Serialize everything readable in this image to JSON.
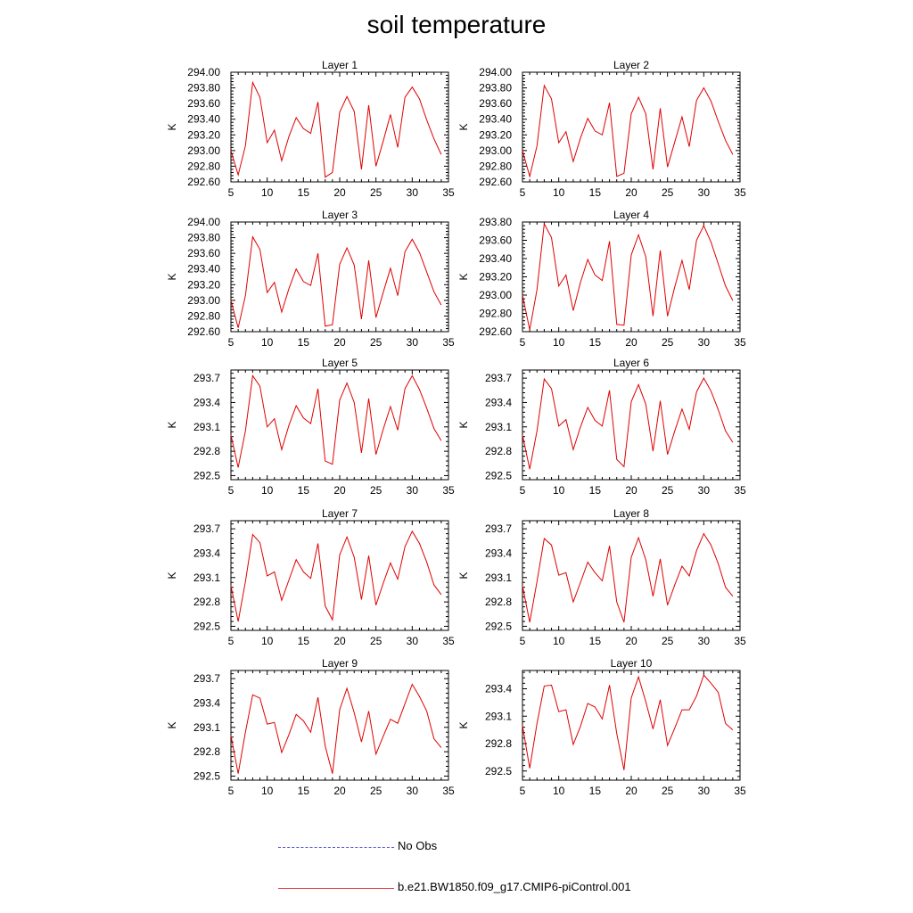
{
  "title": "soil temperature",
  "legend": [
    {
      "label": "No Obs",
      "color": "#5a5ad8",
      "style": "dashed"
    },
    {
      "label": "b.e21.BW1850.f09_g17.CMIP6-piControl.001",
      "color": "#e00000",
      "style": "solid"
    }
  ],
  "chart_data": [
    {
      "type": "line",
      "title": "Layer 1",
      "ylabel": "K",
      "xlim": [
        5,
        35
      ],
      "ylim": [
        292.6,
        294.0
      ],
      "xticks": [
        5,
        10,
        15,
        20,
        25,
        30,
        35
      ],
      "yticks": [
        292.6,
        292.8,
        293.0,
        293.2,
        293.4,
        293.6,
        293.8,
        294.0
      ],
      "ytick_decimals": 2,
      "x": [
        5,
        6,
        7,
        8,
        9,
        10,
        11,
        12,
        13,
        14,
        15,
        16,
        17,
        18,
        19,
        20,
        21,
        22,
        23,
        24,
        25,
        26,
        27,
        28,
        29,
        30,
        31,
        32,
        33,
        34
      ],
      "series": [
        {
          "values": [
            293.0,
            292.69,
            293.06,
            293.87,
            293.68,
            293.1,
            293.26,
            292.87,
            293.18,
            293.42,
            293.28,
            293.22,
            293.62,
            292.66,
            292.72,
            293.49,
            293.69,
            293.5,
            292.76,
            293.58,
            292.8,
            293.12,
            293.46,
            293.04,
            293.68,
            293.81,
            293.66,
            293.39,
            293.15,
            292.95
          ]
        }
      ]
    },
    {
      "type": "line",
      "title": "Layer 2",
      "ylabel": "K",
      "xlim": [
        5,
        35
      ],
      "ylim": [
        292.6,
        294.0
      ],
      "xticks": [
        5,
        10,
        15,
        20,
        25,
        30,
        35
      ],
      "yticks": [
        292.6,
        292.8,
        293.0,
        293.2,
        293.4,
        293.6,
        293.8,
        294.0
      ],
      "ytick_decimals": 2,
      "x": [
        5,
        6,
        7,
        8,
        9,
        10,
        11,
        12,
        13,
        14,
        15,
        16,
        17,
        18,
        19,
        20,
        21,
        22,
        23,
        24,
        25,
        26,
        27,
        28,
        29,
        30,
        31,
        32,
        33,
        34
      ],
      "series": [
        {
          "values": [
            293.0,
            292.67,
            293.06,
            293.83,
            293.66,
            293.1,
            293.24,
            292.86,
            293.16,
            293.41,
            293.25,
            293.2,
            293.61,
            292.67,
            292.71,
            293.47,
            293.68,
            293.47,
            292.76,
            293.54,
            292.79,
            293.11,
            293.43,
            293.05,
            293.64,
            293.8,
            293.63,
            293.37,
            293.13,
            292.95
          ]
        }
      ]
    },
    {
      "type": "line",
      "title": "Layer 3",
      "ylabel": "K",
      "xlim": [
        5,
        35
      ],
      "ylim": [
        292.6,
        294.0
      ],
      "xticks": [
        5,
        10,
        15,
        20,
        25,
        30,
        35
      ],
      "yticks": [
        292.6,
        292.8,
        293.0,
        293.2,
        293.4,
        293.6,
        293.8,
        294.0
      ],
      "ytick_decimals": 2,
      "x": [
        5,
        6,
        7,
        8,
        9,
        10,
        11,
        12,
        13,
        14,
        15,
        16,
        17,
        18,
        19,
        20,
        21,
        22,
        23,
        24,
        25,
        26,
        27,
        28,
        29,
        30,
        31,
        32,
        33,
        34
      ],
      "series": [
        {
          "values": [
            293.0,
            292.65,
            293.06,
            293.81,
            293.65,
            293.1,
            293.23,
            292.85,
            293.15,
            293.4,
            293.24,
            293.19,
            293.6,
            292.67,
            292.69,
            293.46,
            293.67,
            293.45,
            292.76,
            293.51,
            292.78,
            293.1,
            293.41,
            293.06,
            293.62,
            293.78,
            293.61,
            293.36,
            293.11,
            292.94
          ]
        }
      ]
    },
    {
      "type": "line",
      "title": "Layer 4",
      "ylabel": "K",
      "xlim": [
        5,
        35
      ],
      "ylim": [
        292.6,
        293.8
      ],
      "xticks": [
        5,
        10,
        15,
        20,
        25,
        30,
        35
      ],
      "yticks": [
        292.6,
        292.8,
        293.0,
        293.2,
        293.4,
        293.6,
        293.8
      ],
      "ytick_decimals": 2,
      "x": [
        5,
        6,
        7,
        8,
        9,
        10,
        11,
        12,
        13,
        14,
        15,
        16,
        17,
        18,
        19,
        20,
        21,
        22,
        23,
        24,
        25,
        26,
        27,
        28,
        29,
        30,
        31,
        32,
        33,
        34
      ],
      "series": [
        {
          "values": [
            293.0,
            292.62,
            293.06,
            293.78,
            293.63,
            293.1,
            293.22,
            292.83,
            293.14,
            293.39,
            293.22,
            293.16,
            293.59,
            292.68,
            292.67,
            293.44,
            293.66,
            293.42,
            292.77,
            293.49,
            292.77,
            293.09,
            293.38,
            293.06,
            293.6,
            293.76,
            293.58,
            293.34,
            293.1,
            292.94
          ]
        }
      ]
    },
    {
      "type": "line",
      "title": "Layer 5",
      "ylabel": "K",
      "xlim": [
        5,
        35
      ],
      "ylim": [
        292.45,
        293.8
      ],
      "xticks": [
        5,
        10,
        15,
        20,
        25,
        30,
        35
      ],
      "yticks": [
        292.5,
        292.8,
        293.1,
        293.4,
        293.7
      ],
      "ytick_decimals": 1,
      "x": [
        5,
        6,
        7,
        8,
        9,
        10,
        11,
        12,
        13,
        14,
        15,
        16,
        17,
        18,
        19,
        20,
        21,
        22,
        23,
        24,
        25,
        26,
        27,
        28,
        29,
        30,
        31,
        32,
        33,
        34
      ],
      "series": [
        {
          "values": [
            293.0,
            292.6,
            293.05,
            293.73,
            293.6,
            293.1,
            293.2,
            292.82,
            293.12,
            293.36,
            293.21,
            293.14,
            293.57,
            292.68,
            292.64,
            293.43,
            293.64,
            293.4,
            292.78,
            293.45,
            292.76,
            293.07,
            293.35,
            293.06,
            293.57,
            293.73,
            293.56,
            293.33,
            293.08,
            292.93
          ]
        }
      ]
    },
    {
      "type": "line",
      "title": "Layer 6",
      "ylabel": "K",
      "xlim": [
        5,
        35
      ],
      "ylim": [
        292.45,
        293.8
      ],
      "xticks": [
        5,
        10,
        15,
        20,
        25,
        30,
        35
      ],
      "yticks": [
        292.5,
        292.8,
        293.1,
        293.4,
        293.7
      ],
      "ytick_decimals": 1,
      "x": [
        5,
        6,
        7,
        8,
        9,
        10,
        11,
        12,
        13,
        14,
        15,
        16,
        17,
        18,
        19,
        20,
        21,
        22,
        23,
        24,
        25,
        26,
        27,
        28,
        29,
        30,
        31,
        32,
        33,
        34
      ],
      "series": [
        {
          "values": [
            293.0,
            292.58,
            293.05,
            293.69,
            293.57,
            293.11,
            293.19,
            292.82,
            293.1,
            293.34,
            293.18,
            293.11,
            293.55,
            292.7,
            292.61,
            293.41,
            293.62,
            293.38,
            292.8,
            293.42,
            292.76,
            293.05,
            293.32,
            293.07,
            293.53,
            293.7,
            293.54,
            293.31,
            293.05,
            292.91
          ]
        }
      ]
    },
    {
      "type": "line",
      "title": "Layer 7",
      "ylabel": "K",
      "xlim": [
        5,
        35
      ],
      "ylim": [
        292.45,
        293.8
      ],
      "xticks": [
        5,
        10,
        15,
        20,
        25,
        30,
        35
      ],
      "yticks": [
        292.5,
        292.8,
        293.1,
        293.4,
        293.7
      ],
      "ytick_decimals": 1,
      "x": [
        5,
        6,
        7,
        8,
        9,
        10,
        11,
        12,
        13,
        14,
        15,
        16,
        17,
        18,
        19,
        20,
        21,
        22,
        23,
        24,
        25,
        26,
        27,
        28,
        29,
        30,
        31,
        32,
        33,
        34
      ],
      "series": [
        {
          "values": [
            293.0,
            292.56,
            293.05,
            293.63,
            293.53,
            293.12,
            293.17,
            292.82,
            293.07,
            293.32,
            293.17,
            293.09,
            293.52,
            292.75,
            292.58,
            293.38,
            293.6,
            293.35,
            292.83,
            293.37,
            292.76,
            293.03,
            293.28,
            293.08,
            293.48,
            293.67,
            293.52,
            293.29,
            293.01,
            292.89
          ]
        }
      ]
    },
    {
      "type": "line",
      "title": "Layer 8",
      "ylabel": "K",
      "xlim": [
        5,
        35
      ],
      "ylim": [
        292.45,
        293.8
      ],
      "xticks": [
        5,
        10,
        15,
        20,
        25,
        30,
        35
      ],
      "yticks": [
        292.5,
        292.8,
        293.1,
        293.4,
        293.7
      ],
      "ytick_decimals": 1,
      "x": [
        5,
        6,
        7,
        8,
        9,
        10,
        11,
        12,
        13,
        14,
        15,
        16,
        17,
        18,
        19,
        20,
        21,
        22,
        23,
        24,
        25,
        26,
        27,
        28,
        29,
        30,
        31,
        32,
        33,
        34
      ],
      "series": [
        {
          "values": [
            293.0,
            292.55,
            293.05,
            293.58,
            293.5,
            293.13,
            293.16,
            292.8,
            293.04,
            293.29,
            293.16,
            293.06,
            293.49,
            292.8,
            292.55,
            293.35,
            293.59,
            293.32,
            292.87,
            293.33,
            292.76,
            293.01,
            293.24,
            293.12,
            293.43,
            293.64,
            293.5,
            293.27,
            292.98,
            292.87
          ]
        }
      ]
    },
    {
      "type": "line",
      "title": "Layer 9",
      "ylabel": "K",
      "xlim": [
        5,
        35
      ],
      "ylim": [
        292.45,
        293.8
      ],
      "xticks": [
        5,
        10,
        15,
        20,
        25,
        30,
        35
      ],
      "yticks": [
        292.5,
        292.8,
        293.1,
        293.4,
        293.7
      ],
      "ytick_decimals": 1,
      "x": [
        5,
        6,
        7,
        8,
        9,
        10,
        11,
        12,
        13,
        14,
        15,
        16,
        17,
        18,
        19,
        20,
        21,
        22,
        23,
        24,
        25,
        26,
        27,
        28,
        29,
        30,
        31,
        32,
        33,
        34
      ],
      "series": [
        {
          "values": [
            293.0,
            292.53,
            293.04,
            293.5,
            293.46,
            293.14,
            293.16,
            292.79,
            293.01,
            293.26,
            293.18,
            293.04,
            293.47,
            292.87,
            292.53,
            293.32,
            293.58,
            293.28,
            292.92,
            293.3,
            292.77,
            292.99,
            293.2,
            293.15,
            293.39,
            293.63,
            293.48,
            293.3,
            292.96,
            292.85
          ]
        }
      ]
    },
    {
      "type": "line",
      "title": "Layer 10",
      "ylabel": "K",
      "xlim": [
        5,
        35
      ],
      "ylim": [
        292.4,
        293.6
      ],
      "xticks": [
        5,
        10,
        15,
        20,
        25,
        30,
        35
      ],
      "yticks": [
        292.5,
        292.8,
        293.1,
        293.4
      ],
      "ytick_decimals": 1,
      "x": [
        5,
        6,
        7,
        8,
        9,
        10,
        11,
        12,
        13,
        14,
        15,
        16,
        17,
        18,
        19,
        20,
        21,
        22,
        23,
        24,
        25,
        26,
        27,
        28,
        29,
        30,
        31,
        32,
        33,
        34
      ],
      "series": [
        {
          "values": [
            293.0,
            292.53,
            293.02,
            293.43,
            293.44,
            293.15,
            293.17,
            292.79,
            292.99,
            293.24,
            293.2,
            293.07,
            293.44,
            292.91,
            292.51,
            293.3,
            293.53,
            293.26,
            292.96,
            293.28,
            292.78,
            292.97,
            293.17,
            293.17,
            293.32,
            293.55,
            293.46,
            293.36,
            293.02,
            292.95
          ]
        }
      ]
    }
  ]
}
